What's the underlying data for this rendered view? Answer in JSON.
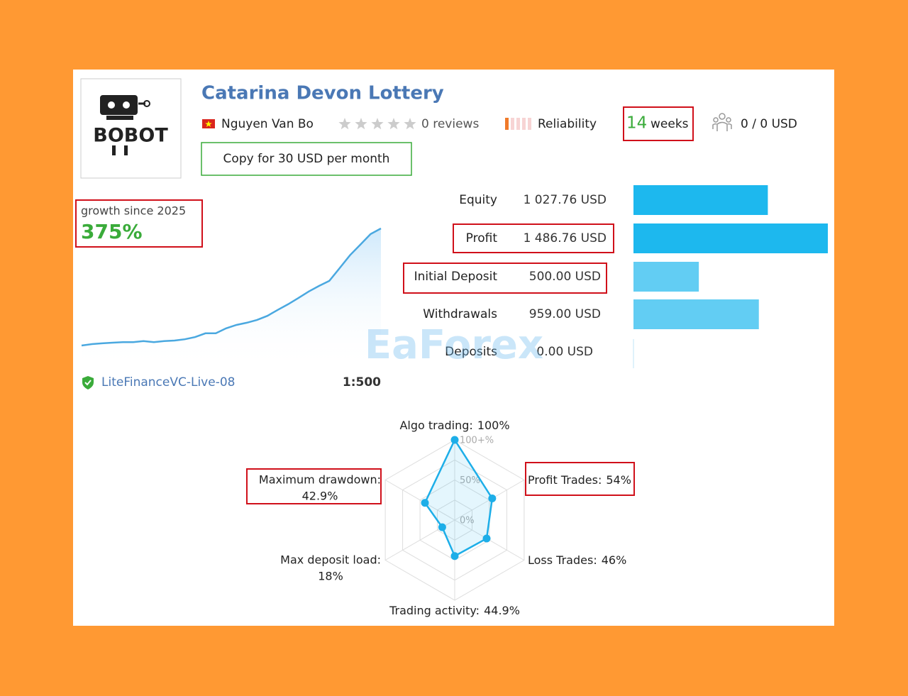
{
  "header": {
    "title": "Catarina Devon Lottery",
    "logo": "BOBOT",
    "author": "Nguyen Van Bo",
    "reviews": "0 reviews",
    "reliability": "Reliability",
    "weeks_number": "14",
    "weeks_unit": "weeks",
    "subscribers": "0 / 0 USD",
    "copy_button": "Copy for 30 USD per month"
  },
  "growth": {
    "label": "growth since 2025",
    "value": "375%",
    "curve": [
      0,
      4.5,
      7,
      9,
      11,
      11,
      14,
      11,
      14,
      16,
      20,
      27,
      39,
      39,
      55,
      66,
      73,
      82,
      95,
      114,
      132,
      152,
      173,
      191,
      207,
      248,
      289,
      323,
      357,
      375
    ]
  },
  "account": {
    "server": "LiteFinanceVC-Live-08",
    "leverage": "1:500"
  },
  "stats": [
    {
      "label": "Equity",
      "value": 1027.76,
      "value_label": "1 027.76 USD"
    },
    {
      "label": "Profit",
      "value": 1486.76,
      "value_label": "1 486.76 USD"
    },
    {
      "label": "Initial Deposit",
      "value": 500.0,
      "value_label": "500.00 USD"
    },
    {
      "label": "Withdrawals",
      "value": 959.0,
      "value_label": "959.00 USD"
    },
    {
      "label": "Deposits",
      "value": 0.0,
      "value_label": "0.00 USD"
    }
  ],
  "watermark": "EaForex",
  "radar": {
    "axes": [
      {
        "name": "Algo trading:",
        "value": 100,
        "value_label": "100%"
      },
      {
        "name": "Profit Trades:",
        "value": 54,
        "value_label": "54%"
      },
      {
        "name": "Loss Trades:",
        "value": 46,
        "value_label": "46%"
      },
      {
        "name": "Trading activity:",
        "value": 44.9,
        "value_label": "44.9%"
      },
      {
        "name": "Max deposit load:",
        "value": 18,
        "value_label": "18%"
      },
      {
        "name": "Maximum drawdown:",
        "value": 42.9,
        "value_label": "42.9%"
      }
    ],
    "ticks": [
      {
        "value": 0,
        "label": "0%"
      },
      {
        "value": 50,
        "label": "50%"
      },
      {
        "value": 100,
        "label": "100+%"
      }
    ]
  }
}
